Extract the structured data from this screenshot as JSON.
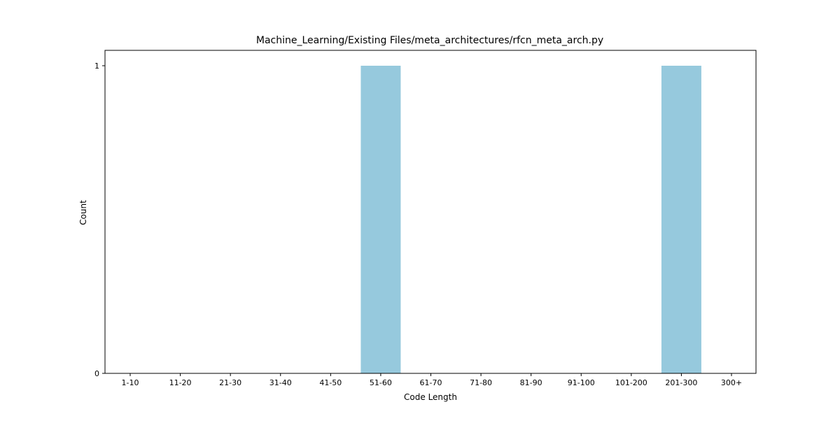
{
  "chart_data": {
    "type": "bar",
    "title": "Machine_Learning/Existing Files/meta_architectures/rfcn_meta_arch.py",
    "xlabel": "Code Length",
    "ylabel": "Count",
    "categories": [
      "1-10",
      "11-20",
      "21-30",
      "31-40",
      "41-50",
      "51-60",
      "61-70",
      "71-80",
      "81-90",
      "91-100",
      "101-200",
      "201-300",
      "300+"
    ],
    "values": [
      0,
      0,
      0,
      0,
      0,
      1,
      0,
      0,
      0,
      0,
      0,
      1,
      0
    ],
    "ylim": [
      0,
      1
    ],
    "yticks": [
      0,
      1
    ],
    "grid": false,
    "bar_color": "#96c9dd"
  }
}
